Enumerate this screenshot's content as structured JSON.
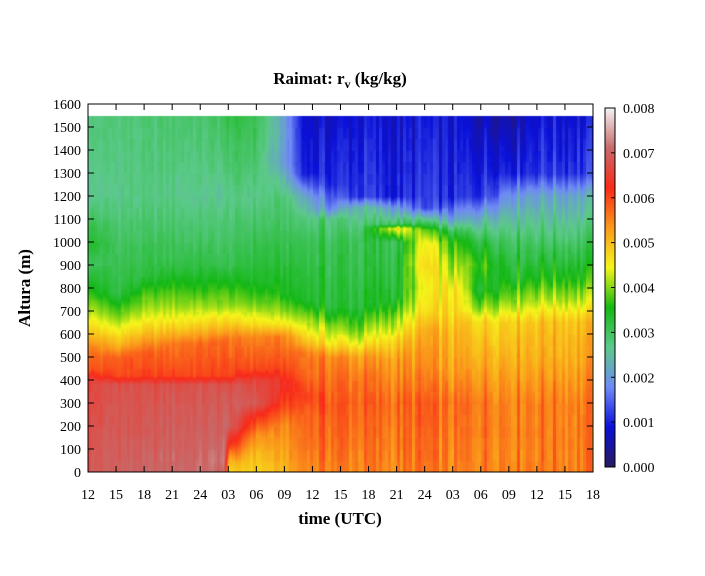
{
  "chart_data": {
    "type": "heatmap",
    "title": "Raimat: r",
    "title_subscript": "v",
    "title_units": " (kg/kg)",
    "xlabel": "time (UTC)",
    "ylabel": "Altura (m)",
    "x_tick_labels": [
      "12",
      "15",
      "18",
      "21",
      "24",
      "03",
      "06",
      "09",
      "12",
      "15",
      "18",
      "21",
      "24",
      "03",
      "06",
      "09",
      "12",
      "15",
      "18"
    ],
    "ylim": [
      0,
      1600
    ],
    "y_ticks": [
      0,
      100,
      200,
      300,
      400,
      500,
      600,
      700,
      800,
      900,
      1000,
      1100,
      1200,
      1300,
      1400,
      1500,
      1600
    ],
    "colorbar": {
      "range": [
        0.0,
        0.008
      ],
      "tick_labels": [
        "0.000",
        "0.001",
        "0.002",
        "0.003",
        "0.004",
        "0.005",
        "0.006",
        "0.007",
        "0.008"
      ],
      "colors": [
        "#2a1a5e",
        "#0a10d8",
        "#6f8af5",
        "#5cc98a",
        "#14b814",
        "#f5f51a",
        "#fa9a1a",
        "#f82a1a",
        "#c86a6a",
        "#f4f4f4"
      ]
    },
    "field_profiles": [
      {
        "x": 0,
        "top": 1550,
        "levels": [
          [
            0,
            0.0069
          ],
          [
            400,
            0.0066
          ],
          [
            450,
            0.0059
          ],
          [
            550,
            0.0055
          ],
          [
            600,
            0.005
          ],
          [
            700,
            0.0042
          ],
          [
            800,
            0.0036
          ],
          [
            900,
            0.003
          ],
          [
            1000,
            0.0034
          ],
          [
            1200,
            0.0026
          ],
          [
            1550,
            0.0028
          ]
        ]
      },
      {
        "x": 3,
        "top": 1550,
        "levels": [
          [
            0,
            0.007
          ],
          [
            380,
            0.0068
          ],
          [
            420,
            0.006
          ],
          [
            500,
            0.0058
          ],
          [
            560,
            0.005
          ],
          [
            620,
            0.0045
          ],
          [
            700,
            0.0038
          ],
          [
            780,
            0.0032
          ],
          [
            1000,
            0.003
          ],
          [
            1200,
            0.0027
          ],
          [
            1550,
            0.0028
          ]
        ]
      },
      {
        "x": 6,
        "top": 1550,
        "levels": [
          [
            0,
            0.007
          ],
          [
            380,
            0.0067
          ],
          [
            420,
            0.006
          ],
          [
            520,
            0.0058
          ],
          [
            600,
            0.005
          ],
          [
            680,
            0.0043
          ],
          [
            760,
            0.0038
          ],
          [
            850,
            0.0032
          ],
          [
            1000,
            0.003
          ],
          [
            1200,
            0.0027
          ],
          [
            1550,
            0.0028
          ]
        ]
      },
      {
        "x": 9,
        "top": 1550,
        "levels": [
          [
            0,
            0.0071
          ],
          [
            380,
            0.0068
          ],
          [
            420,
            0.006
          ],
          [
            560,
            0.0056
          ],
          [
            630,
            0.0048
          ],
          [
            720,
            0.0041
          ],
          [
            820,
            0.0036
          ],
          [
            920,
            0.0031
          ],
          [
            1000,
            0.003
          ],
          [
            1200,
            0.0027
          ],
          [
            1550,
            0.0029
          ]
        ]
      },
      {
        "x": 12,
        "top": 1550,
        "levels": [
          [
            0,
            0.0071
          ],
          [
            380,
            0.0068
          ],
          [
            420,
            0.006
          ],
          [
            560,
            0.0057
          ],
          [
            630,
            0.0049
          ],
          [
            720,
            0.0041
          ],
          [
            800,
            0.0036
          ],
          [
            900,
            0.0032
          ],
          [
            1000,
            0.003
          ],
          [
            1200,
            0.0026
          ],
          [
            1550,
            0.0029
          ]
        ]
      },
      {
        "x": 14.5,
        "top": 1550,
        "levels": [
          [
            0,
            0.007
          ],
          [
            50,
            0.0072
          ],
          [
            380,
            0.0068
          ],
          [
            420,
            0.006
          ],
          [
            570,
            0.0057
          ],
          [
            640,
            0.0049
          ],
          [
            720,
            0.0041
          ],
          [
            820,
            0.0036
          ],
          [
            900,
            0.0031
          ],
          [
            1200,
            0.0026
          ],
          [
            1550,
            0.003
          ]
        ]
      },
      {
        "x": 15,
        "top": 1550,
        "levels": [
          [
            0,
            0.0048
          ],
          [
            50,
            0.0052
          ],
          [
            120,
            0.0062
          ],
          [
            200,
            0.007
          ],
          [
            380,
            0.0068
          ],
          [
            420,
            0.006
          ],
          [
            580,
            0.0056
          ],
          [
            650,
            0.0048
          ],
          [
            730,
            0.004
          ],
          [
            830,
            0.0035
          ],
          [
            900,
            0.0031
          ],
          [
            1200,
            0.0027
          ],
          [
            1550,
            0.0032
          ]
        ]
      },
      {
        "x": 18,
        "top": 1550,
        "levels": [
          [
            0,
            0.0048
          ],
          [
            80,
            0.005
          ],
          [
            160,
            0.0054
          ],
          [
            240,
            0.0062
          ],
          [
            300,
            0.0069
          ],
          [
            400,
            0.0066
          ],
          [
            450,
            0.006
          ],
          [
            590,
            0.0055
          ],
          [
            650,
            0.0046
          ],
          [
            740,
            0.0039
          ],
          [
            840,
            0.0034
          ],
          [
            1000,
            0.0031
          ],
          [
            1200,
            0.0027
          ],
          [
            1550,
            0.0031
          ]
        ]
      },
      {
        "x": 21,
        "top": 1550,
        "levels": [
          [
            0,
            0.0051
          ],
          [
            200,
            0.0054
          ],
          [
            300,
            0.006
          ],
          [
            380,
            0.0064
          ],
          [
            450,
            0.006
          ],
          [
            590,
            0.0055
          ],
          [
            640,
            0.0046
          ],
          [
            700,
            0.004
          ],
          [
            780,
            0.0035
          ],
          [
            1000,
            0.0031
          ],
          [
            1200,
            0.0028
          ],
          [
            1350,
            0.002
          ],
          [
            1550,
            0.0021
          ]
        ]
      },
      {
        "x": 23,
        "top": 1550,
        "levels": [
          [
            0,
            0.0055
          ],
          [
            250,
            0.0058
          ],
          [
            330,
            0.0061
          ],
          [
            420,
            0.0058
          ],
          [
            520,
            0.0056
          ],
          [
            600,
            0.0047
          ],
          [
            680,
            0.004
          ],
          [
            750,
            0.0034
          ],
          [
            1000,
            0.0031
          ],
          [
            1100,
            0.0028
          ],
          [
            1200,
            0.0022
          ],
          [
            1300,
            0.001
          ],
          [
            1550,
            0.0008
          ]
        ]
      },
      {
        "x": 26,
        "top": 1550,
        "levels": [
          [
            0,
            0.0056
          ],
          [
            300,
            0.0059
          ],
          [
            420,
            0.0057
          ],
          [
            500,
            0.0055
          ],
          [
            560,
            0.0046
          ],
          [
            640,
            0.004
          ],
          [
            720,
            0.0033
          ],
          [
            1000,
            0.0031
          ],
          [
            1100,
            0.0028
          ],
          [
            1150,
            0.0018
          ],
          [
            1250,
            0.0011
          ],
          [
            1550,
            0.0008
          ]
        ]
      },
      {
        "x": 29,
        "top": 1550,
        "levels": [
          [
            0,
            0.0055
          ],
          [
            300,
            0.0058
          ],
          [
            420,
            0.0056
          ],
          [
            500,
            0.0053
          ],
          [
            560,
            0.0045
          ],
          [
            620,
            0.0039
          ],
          [
            720,
            0.0033
          ],
          [
            1000,
            0.0031
          ],
          [
            1150,
            0.0025
          ],
          [
            1200,
            0.0012
          ],
          [
            1550,
            0.0009
          ]
        ]
      },
      {
        "x": 33,
        "top": 1550,
        "levels": [
          [
            0,
            0.0055
          ],
          [
            300,
            0.0057
          ],
          [
            400,
            0.0055
          ],
          [
            520,
            0.0052
          ],
          [
            600,
            0.0046
          ],
          [
            680,
            0.004
          ],
          [
            760,
            0.0034
          ],
          [
            1000,
            0.0031
          ],
          [
            1060,
            0.0046
          ],
          [
            1080,
            0.003
          ],
          [
            1150,
            0.002
          ],
          [
            1200,
            0.001
          ],
          [
            1550,
            0.0008
          ]
        ]
      },
      {
        "x": 36,
        "top": 1550,
        "levels": [
          [
            0,
            0.0056
          ],
          [
            300,
            0.0058
          ],
          [
            450,
            0.0054
          ],
          [
            620,
            0.0051
          ],
          [
            700,
            0.0046
          ],
          [
            800,
            0.0044
          ],
          [
            900,
            0.0047
          ],
          [
            1000,
            0.0045
          ],
          [
            1050,
            0.0039
          ],
          [
            1100,
            0.0026
          ],
          [
            1150,
            0.0012
          ],
          [
            1550,
            0.0009
          ]
        ]
      },
      {
        "x": 39,
        "top": 1550,
        "levels": [
          [
            0,
            0.0054
          ],
          [
            300,
            0.0056
          ],
          [
            450,
            0.0052
          ],
          [
            600,
            0.005
          ],
          [
            700,
            0.0047
          ],
          [
            800,
            0.0046
          ],
          [
            900,
            0.004
          ],
          [
            1000,
            0.0036
          ],
          [
            1050,
            0.003
          ],
          [
            1100,
            0.002
          ],
          [
            1200,
            0.001
          ],
          [
            1550,
            0.0008
          ]
        ]
      },
      {
        "x": 42,
        "top": 1550,
        "levels": [
          [
            0,
            0.0056
          ],
          [
            300,
            0.0057
          ],
          [
            450,
            0.0053
          ],
          [
            650,
            0.0048
          ],
          [
            720,
            0.004
          ],
          [
            800,
            0.0034
          ],
          [
            900,
            0.0038
          ],
          [
            1000,
            0.0033
          ],
          [
            1100,
            0.0024
          ],
          [
            1200,
            0.0012
          ],
          [
            1550,
            0.0007
          ]
        ]
      },
      {
        "x": 45,
        "top": 1550,
        "levels": [
          [
            0,
            0.0056
          ],
          [
            300,
            0.0056
          ],
          [
            500,
            0.0052
          ],
          [
            650,
            0.0049
          ],
          [
            750,
            0.0041
          ],
          [
            850,
            0.0035
          ],
          [
            1000,
            0.0031
          ],
          [
            1100,
            0.0026
          ],
          [
            1200,
            0.002
          ],
          [
            1300,
            0.0011
          ],
          [
            1550,
            0.0006
          ]
        ]
      },
      {
        "x": 48,
        "top": 1550,
        "levels": [
          [
            0,
            0.0056
          ],
          [
            300,
            0.0056
          ],
          [
            500,
            0.0052
          ],
          [
            650,
            0.005
          ],
          [
            750,
            0.0042
          ],
          [
            850,
            0.0036
          ],
          [
            1000,
            0.003
          ],
          [
            1100,
            0.0026
          ],
          [
            1200,
            0.0022
          ],
          [
            1300,
            0.0012
          ],
          [
            1550,
            0.0009
          ]
        ]
      },
      {
        "x": 54,
        "top": 1550,
        "levels": [
          [
            0,
            0.0056
          ],
          [
            300,
            0.0056
          ],
          [
            500,
            0.0052
          ],
          [
            650,
            0.005
          ],
          [
            750,
            0.0042
          ],
          [
            850,
            0.0036
          ],
          [
            1000,
            0.003
          ],
          [
            1100,
            0.0026
          ],
          [
            1200,
            0.0022
          ],
          [
            1300,
            0.0012
          ],
          [
            1550,
            0.0009
          ]
        ]
      }
    ],
    "grid": false
  }
}
